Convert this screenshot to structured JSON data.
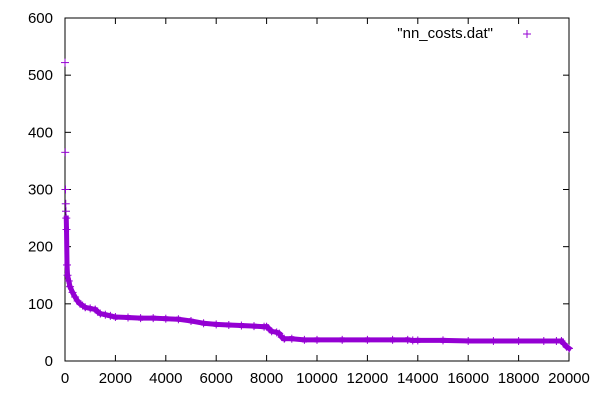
{
  "chart_data": {
    "type": "scatter",
    "title": "",
    "xlabel": "",
    "ylabel": "",
    "xlim": [
      0,
      20000
    ],
    "ylim": [
      0,
      600
    ],
    "xticks": [
      0,
      2000,
      4000,
      6000,
      8000,
      10000,
      12000,
      14000,
      16000,
      18000,
      20000
    ],
    "yticks": [
      0,
      100,
      200,
      300,
      400,
      500,
      600
    ],
    "grid": false,
    "legend_position": "top-right",
    "marker": "+",
    "series": [
      {
        "name": "\"nn_costs.dat\"",
        "color": "#9400d3",
        "x": [
          0,
          10,
          20,
          30,
          40,
          50,
          60,
          80,
          100,
          150,
          200,
          300,
          400,
          500,
          600,
          700,
          800,
          1000,
          1200,
          1300,
          1400,
          1600,
          1800,
          2000,
          2500,
          3000,
          3500,
          4000,
          4500,
          5000,
          5500,
          6000,
          6500,
          7000,
          7500,
          7900,
          8000,
          8100,
          8200,
          8400,
          8500,
          8600,
          8700,
          9000,
          9500,
          10000,
          11000,
          12000,
          13000,
          13600,
          13800,
          14000,
          15000,
          16000,
          17000,
          18000,
          19000,
          19500,
          19700,
          19800,
          19900,
          20000
        ],
        "y": [
          522,
          365,
          300,
          275,
          262,
          250,
          230,
          168,
          150,
          140,
          130,
          120,
          112,
          105,
          100,
          97,
          94,
          92,
          90,
          86,
          83,
          81,
          79,
          77,
          76,
          75,
          75,
          74,
          73,
          70,
          66,
          64,
          63,
          62,
          61,
          60,
          60,
          56,
          52,
          50,
          48,
          42,
          39,
          39,
          37,
          37,
          37,
          37,
          37,
          37,
          36,
          36,
          36,
          35,
          35,
          35,
          35,
          35,
          35,
          30,
          25,
          22
        ]
      }
    ]
  }
}
